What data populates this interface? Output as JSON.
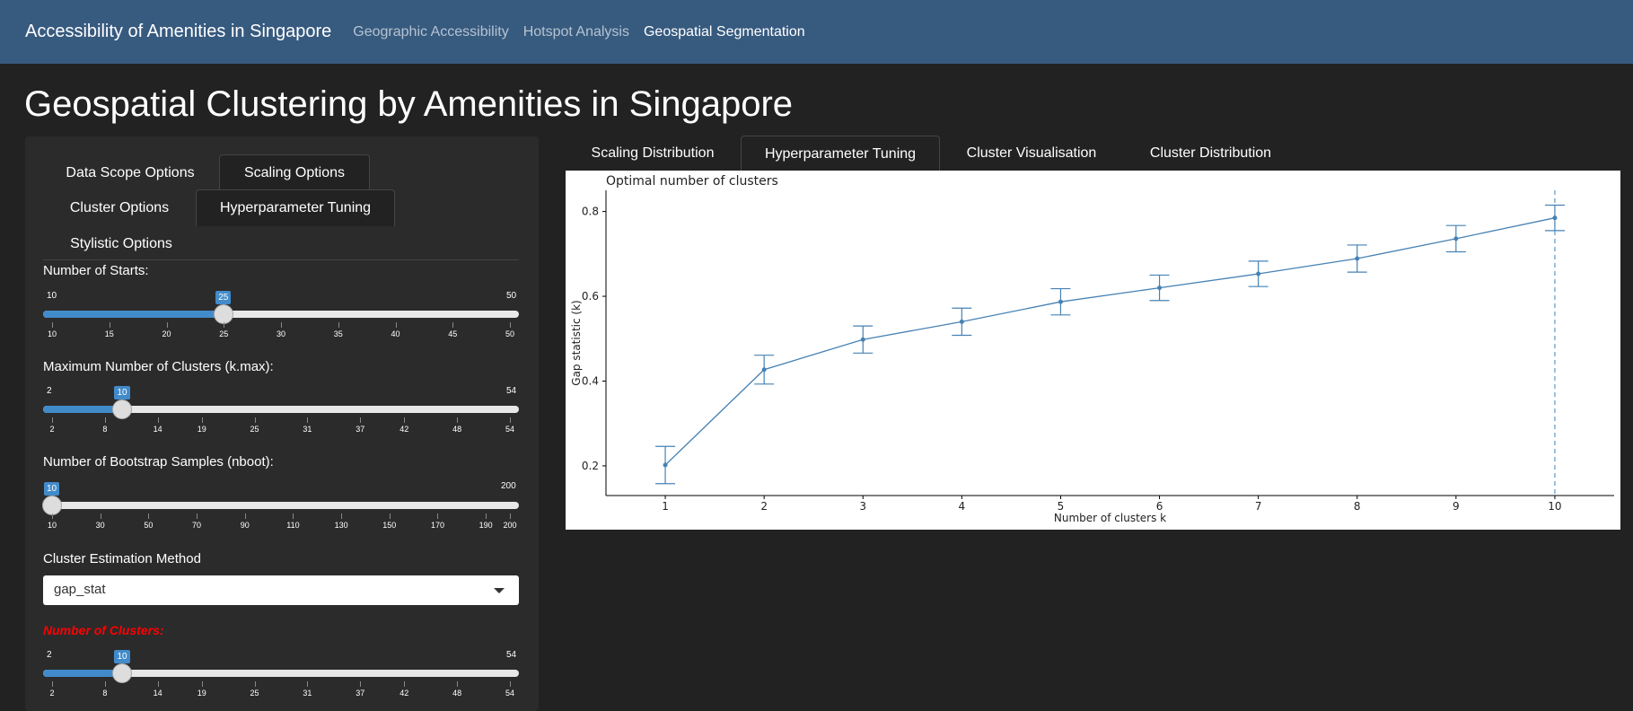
{
  "navbar": {
    "brand": "Accessibility of Amenities in Singapore",
    "links": [
      "Geographic Accessibility",
      "Hotspot Analysis",
      "Geospatial Segmentation"
    ]
  },
  "page_title": "Geospatial Clustering by Amenities in Singapore",
  "sidebar": {
    "tabs": [
      "Data Scope Options",
      "Scaling Options",
      "Cluster Options",
      "Hyperparameter Tuning",
      "Stylistic Options"
    ],
    "active_tabs": [
      "Scaling Options",
      "Hyperparameter Tuning"
    ],
    "sliders": [
      {
        "label": "Number of Starts:",
        "min": 10,
        "max": 50,
        "value": 25,
        "ticks": [
          "10",
          "15",
          "20",
          "25",
          "30",
          "35",
          "40",
          "45",
          "50"
        ]
      },
      {
        "label": "Maximum Number of Clusters (k.max):",
        "min": 2,
        "max": 54,
        "value": 10,
        "ticks": [
          "2",
          "8",
          "14",
          "19",
          "25",
          "31",
          "37",
          "42",
          "48",
          "54"
        ]
      },
      {
        "label": "Number of Bootstrap Samples (nboot):",
        "min": 10,
        "max": 200,
        "value": 10,
        "ticks": [
          "10",
          "30",
          "50",
          "70",
          "90",
          "110",
          "130",
          "150",
          "170",
          "190",
          "200"
        ]
      }
    ],
    "method": {
      "label": "Cluster Estimation Method",
      "value": "gap_stat"
    },
    "clusters": {
      "label": "Number of Clusters:",
      "min": 2,
      "max": 54,
      "value": 10,
      "ticks": [
        "2",
        "8",
        "14",
        "19",
        "25",
        "31",
        "37",
        "42",
        "48",
        "54"
      ]
    }
  },
  "main_tabs": [
    "Scaling Distribution",
    "Hyperparameter Tuning",
    "Cluster Visualisation",
    "Cluster Distribution"
  ],
  "active_main_tab": "Hyperparameter Tuning",
  "chart_data": {
    "type": "line",
    "title": "Optimal number of clusters",
    "xlabel": "Number of clusters k",
    "ylabel": "Gap statistic (k)",
    "x": [
      1,
      2,
      3,
      4,
      5,
      6,
      7,
      8,
      9,
      10
    ],
    "values": [
      0.202,
      0.427,
      0.498,
      0.54,
      0.587,
      0.62,
      0.653,
      0.689,
      0.736,
      0.785
    ],
    "error_low": [
      0.158,
      0.393,
      0.466,
      0.508,
      0.556,
      0.59,
      0.623,
      0.657,
      0.705,
      0.755
    ],
    "error_high": [
      0.246,
      0.461,
      0.53,
      0.572,
      0.618,
      0.65,
      0.683,
      0.721,
      0.767,
      0.815
    ],
    "ylim": [
      0.13,
      0.85
    ],
    "xlim": [
      0.4,
      10.6
    ],
    "yticks": [
      0.2,
      0.4,
      0.6,
      0.8
    ],
    "optimal_k": 10,
    "line_color": "#4682b4",
    "grid": false
  },
  "colors": {
    "navbar": "#375a7f",
    "accent": "#428bca",
    "bg": "#222222",
    "required": "#ff0000"
  }
}
